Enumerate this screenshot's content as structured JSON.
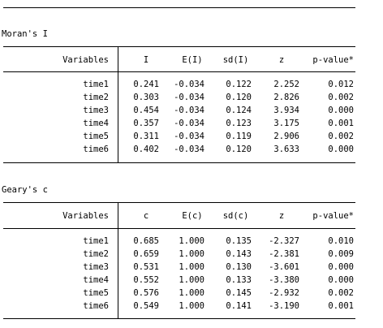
{
  "moran": {
    "title": "Moran's I",
    "headers": [
      "Variables",
      "I",
      "E(I)",
      "sd(I)",
      "z",
      "p-value*"
    ],
    "rows": [
      {
        "var": "time1",
        "v1": "0.241",
        "v2": "-0.034",
        "v3": "0.122",
        "v4": "2.252",
        "v5": "0.012"
      },
      {
        "var": "time2",
        "v1": "0.303",
        "v2": "-0.034",
        "v3": "0.120",
        "v4": "2.826",
        "v5": "0.002"
      },
      {
        "var": "time3",
        "v1": "0.454",
        "v2": "-0.034",
        "v3": "0.124",
        "v4": "3.934",
        "v5": "0.000"
      },
      {
        "var": "time4",
        "v1": "0.357",
        "v2": "-0.034",
        "v3": "0.123",
        "v4": "3.175",
        "v5": "0.001"
      },
      {
        "var": "time5",
        "v1": "0.311",
        "v2": "-0.034",
        "v3": "0.119",
        "v4": "2.906",
        "v5": "0.002"
      },
      {
        "var": "time6",
        "v1": "0.402",
        "v2": "-0.034",
        "v3": "0.120",
        "v4": "3.633",
        "v5": "0.000"
      }
    ]
  },
  "geary": {
    "title": "Geary's c",
    "headers": [
      "Variables",
      "c",
      "E(c)",
      "sd(c)",
      "z",
      "p-value*"
    ],
    "rows": [
      {
        "var": "time1",
        "v1": "0.685",
        "v2": "1.000",
        "v3": "0.135",
        "v4": "-2.327",
        "v5": "0.010"
      },
      {
        "var": "time2",
        "v1": "0.659",
        "v2": "1.000",
        "v3": "0.143",
        "v4": "-2.381",
        "v5": "0.009"
      },
      {
        "var": "time3",
        "v1": "0.531",
        "v2": "1.000",
        "v3": "0.130",
        "v4": "-3.601",
        "v5": "0.000"
      },
      {
        "var": "time4",
        "v1": "0.552",
        "v2": "1.000",
        "v3": "0.133",
        "v4": "-3.380",
        "v5": "0.000"
      },
      {
        "var": "time5",
        "v1": "0.576",
        "v2": "1.000",
        "v3": "0.145",
        "v4": "-2.932",
        "v5": "0.002"
      },
      {
        "var": "time6",
        "v1": "0.549",
        "v2": "1.000",
        "v3": "0.141",
        "v4": "-3.190",
        "v5": "0.001"
      }
    ]
  }
}
